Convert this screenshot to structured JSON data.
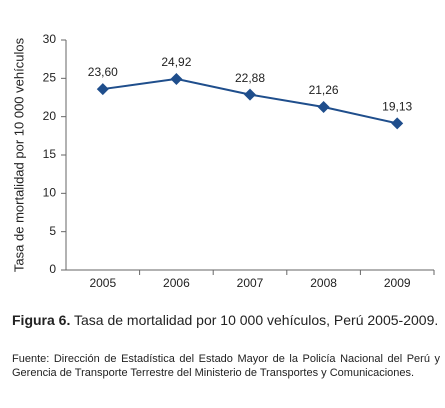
{
  "chart_data": {
    "type": "line",
    "y_label": "Tasa de mortalidad por 10 000 vehículos",
    "categories": [
      "2005",
      "2006",
      "2007",
      "2008",
      "2009"
    ],
    "series": [
      {
        "name": "Tasa de mortalidad",
        "color": "#1f4e8c",
        "values": [
          23.6,
          24.92,
          22.88,
          21.26,
          19.13
        ],
        "value_labels": [
          "23,60",
          "24,92",
          "22,88",
          "21,26",
          "19,13"
        ]
      }
    ],
    "ylim": [
      0,
      30
    ],
    "yticks": [
      0,
      5,
      10,
      15,
      20,
      25,
      30
    ],
    "grid": false
  },
  "caption": {
    "label": "Figura 6.",
    "text": "Tasa de mortalidad por 10 000 vehículos, Perú 2005-2009.",
    "source": "Fuente: Dirección de Estadística del Estado Mayor de la Policía Nacional del Perú y Gerencia de Transporte Terrestre del Ministerio de Transportes y Comunicaciones."
  }
}
